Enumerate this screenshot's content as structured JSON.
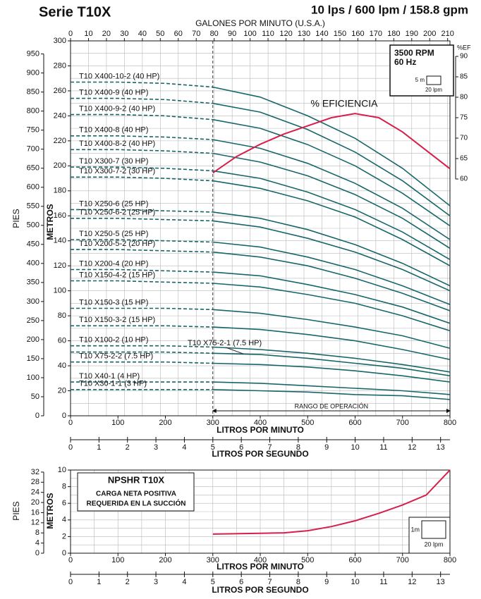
{
  "header": {
    "title": "Serie T10X",
    "subtitle": "10 lps / 600 lpm / 158.8 gpm"
  },
  "chart_data": [
    {
      "type": "line",
      "x_axis_label": "LITROS POR MINUTO",
      "y_axis_label": "METROS",
      "x": [
        0,
        100,
        200,
        300,
        400,
        500,
        600,
        700,
        800
      ],
      "xlim": [
        0,
        800
      ],
      "xticks": [
        0,
        100,
        200,
        300,
        400,
        500,
        600,
        700,
        800
      ],
      "ylim": [
        0,
        300
      ],
      "yticks": [
        0,
        20,
        40,
        60,
        80,
        100,
        120,
        140,
        160,
        180,
        200,
        220,
        240,
        260,
        280,
        300
      ],
      "y_grid": [
        0,
        10,
        20,
        30,
        40,
        50,
        60,
        70,
        80,
        90,
        100,
        110,
        120,
        130,
        140,
        150,
        160,
        170,
        180,
        190,
        200,
        210,
        220,
        230,
        240,
        250,
        260,
        270,
        280,
        290,
        300
      ],
      "y2_label": "%EF",
      "y2lim": [
        60,
        90
      ],
      "y2ticks": [
        60,
        65,
        70,
        75,
        80,
        85,
        90
      ],
      "pies_axis": {
        "label": "PIES",
        "lim": [
          0,
          984.3
        ],
        "ticks": [
          0,
          50,
          100,
          150,
          200,
          250,
          300,
          350,
          400,
          450,
          500,
          550,
          600,
          650,
          700,
          750,
          800,
          850,
          900,
          950
        ]
      },
      "gpm_axis": {
        "label": "GALONES POR MINUTO (U.S.A.)",
        "lim": [
          0,
          211.3
        ],
        "ticks": [
          0,
          10,
          20,
          30,
          40,
          50,
          60,
          70,
          80,
          90,
          100,
          110,
          120,
          130,
          140,
          150,
          160,
          170,
          180,
          190,
          200,
          210
        ]
      },
      "lps_axis": {
        "label": "LITROS POR SEGUNDO",
        "lim": [
          0,
          13.33
        ],
        "ticks": [
          0,
          1,
          2,
          3,
          4,
          5,
          6,
          7,
          8,
          9,
          10,
          11,
          12,
          13
        ]
      },
      "operating_range": {
        "label": "RANGO DE OPERACIÓN",
        "from": 300,
        "to": 800
      },
      "rpm_box": [
        "3500 RPM",
        "60 Hz"
      ],
      "scale_key": {
        "height_label": "5 m",
        "flow_label": "20 lpm"
      },
      "series": [
        {
          "name": "T10 X400-10-2 (40 HP)",
          "color": "#17676a",
          "values": [
            267,
            267,
            266,
            263,
            255,
            240,
            222,
            198,
            168
          ]
        },
        {
          "name": "T10 X400-9 (40 HP)",
          "color": "#17676a",
          "values": [
            254,
            254,
            253,
            250,
            243,
            229,
            211,
            188,
            160
          ]
        },
        {
          "name": "T10 X400-9-2 (40 HP)",
          "color": "#17676a",
          "values": [
            241,
            241,
            240,
            237,
            230,
            217,
            200,
            178,
            152
          ]
        },
        {
          "name": "T10 X400-8 (40 HP)",
          "color": "#17676a",
          "values": [
            224,
            224,
            223,
            221,
            214,
            202,
            186,
            166,
            141
          ]
        },
        {
          "name": "T10 X400-8-2 (40 HP)",
          "color": "#17676a",
          "values": [
            213,
            213,
            212,
            210,
            203,
            192,
            177,
            158,
            134
          ]
        },
        {
          "name": "T10 X300-7 (30 HP)",
          "color": "#17676a",
          "values": [
            199,
            199,
            198,
            196,
            190,
            179,
            165,
            147,
            125
          ]
        },
        {
          "name": "T10 X300-7-2 (30 HP)",
          "color": "#17676a",
          "values": [
            191,
            191,
            190,
            188,
            182,
            172,
            159,
            141,
            120
          ]
        },
        {
          "name": "T10 X250-6 (25 HP)",
          "color": "#17676a",
          "values": [
            165,
            165,
            164,
            163,
            158,
            149,
            137,
            122,
            104
          ]
        },
        {
          "name": "T10 X250-6-2 (25 HP)",
          "color": "#17676a",
          "values": [
            158,
            158,
            157,
            156,
            151,
            142,
            131,
            117,
            100
          ]
        },
        {
          "name": "T10 X250-5 (25 HP)",
          "color": "#17676a",
          "values": [
            141,
            141,
            140,
            139,
            135,
            127,
            117,
            104,
            89
          ]
        },
        {
          "name": "T10 X200-5-2 (20 HP)",
          "color": "#17676a",
          "values": [
            133,
            133,
            132,
            131,
            127,
            120,
            110,
            98,
            84
          ]
        },
        {
          "name": "T10 X200-4 (20 HP)",
          "color": "#17676a",
          "values": [
            117,
            117,
            116,
            115,
            112,
            105,
            97,
            87,
            74
          ]
        },
        {
          "name": "T10 X150-4-2 (15 HP)",
          "color": "#17676a",
          "values": [
            108,
            108,
            107,
            106,
            103,
            97,
            90,
            80,
            68
          ]
        },
        {
          "name": "T10 X150-3 (15 HP)",
          "color": "#17676a",
          "values": [
            86,
            86,
            86,
            85,
            82,
            77,
            71,
            64,
            54
          ]
        },
        {
          "name": "T10 X150-3-2 (15 HP)",
          "color": "#17676a",
          "values": [
            72,
            72,
            72,
            71,
            69,
            65,
            60,
            53,
            45
          ]
        },
        {
          "name": "T10 X100-2 (10 HP)",
          "color": "#17676a",
          "values": [
            56,
            56,
            56,
            55,
            53,
            50,
            46,
            41,
            35
          ]
        },
        {
          "name": "T10 X75-2-1 (7.5 HP)",
          "color": "#17676a",
          "values": [
            51,
            51,
            51,
            50,
            49,
            46,
            42,
            38,
            32
          ]
        },
        {
          "name": "T10 X75-2-2 (7.5 HP)",
          "color": "#17676a",
          "values": [
            43,
            43,
            43,
            42,
            41,
            39,
            36,
            32,
            27
          ]
        },
        {
          "name": "T10 X40-1 (4 HP)",
          "color": "#17676a",
          "values": [
            27,
            27,
            27,
            27,
            26,
            24,
            22,
            20,
            17
          ]
        },
        {
          "name": "T10 X30-1-1 (3 HP)",
          "color": "#17676a",
          "values": [
            21,
            21,
            21,
            21,
            20,
            19,
            17,
            16,
            13
          ]
        },
        {
          "name": "% EFICIENCIA",
          "color": "#d61f4b",
          "axis": "y2",
          "x": [
            300,
            350,
            400,
            450,
            500,
            550,
            600,
            650,
            700,
            750,
            800
          ],
          "values": [
            61.5,
            65.5,
            68.5,
            71,
            73,
            75,
            76,
            75,
            71.5,
            67,
            62.5
          ]
        }
      ]
    },
    {
      "type": "line",
      "title": "NPSHR T10X",
      "subtitle": [
        "CARGA NETA POSITIVA",
        "REQUERIDA EN LA SUCCIÓN"
      ],
      "x_axis_label": "LITROS POR MINUTO",
      "y_axis_label": "METROS",
      "xlim": [
        0,
        800
      ],
      "xticks": [
        0,
        100,
        200,
        300,
        400,
        500,
        600,
        700,
        800
      ],
      "x_grid": [
        0,
        50,
        100,
        150,
        200,
        250,
        300,
        350,
        400,
        450,
        500,
        550,
        600,
        650,
        700,
        750,
        800
      ],
      "ylim": [
        0,
        10
      ],
      "yticks": [
        0,
        2,
        4,
        6,
        8,
        10
      ],
      "y_grid": [
        0,
        1,
        2,
        3,
        4,
        5,
        6,
        7,
        8,
        9,
        10
      ],
      "pies_axis": {
        "label": "PIES",
        "lim": [
          0,
          32.81
        ],
        "ticks": [
          0,
          4,
          8,
          12,
          16,
          20,
          24,
          28,
          32
        ]
      },
      "lps_axis": {
        "label": "LITROS POR SEGUNDO",
        "lim": [
          0,
          13.33
        ],
        "ticks": [
          0,
          1,
          2,
          3,
          4,
          5,
          6,
          7,
          8,
          9,
          10,
          11,
          12,
          13
        ]
      },
      "scale_key": {
        "height_label": "1m",
        "flow_label": "20 lpm"
      },
      "series": [
        {
          "color": "#d61f4b",
          "x": [
            300,
            400,
            450,
            500,
            550,
            600,
            650,
            700,
            750,
            800
          ],
          "values": [
            2.3,
            2.4,
            2.45,
            2.7,
            3.2,
            3.9,
            4.8,
            5.8,
            7.0,
            10
          ]
        }
      ]
    }
  ]
}
